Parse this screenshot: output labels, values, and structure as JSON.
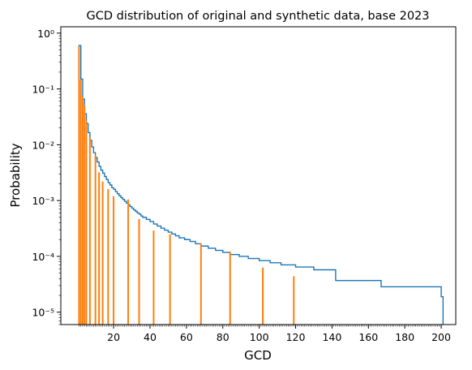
{
  "chart_data": {
    "type": "histogram",
    "title": "GCD distribution of original and synthetic data, base 2023",
    "xlabel": "GCD",
    "ylabel": "Probability",
    "x_ticks": [
      20,
      40,
      60,
      80,
      100,
      120,
      140,
      160,
      180,
      200
    ],
    "y_ticks": [
      {
        "value": 1,
        "label": "10⁰"
      },
      {
        "value": 0.1,
        "label": "10⁻¹"
      },
      {
        "value": 0.01,
        "label": "10⁻²"
      },
      {
        "value": 0.001,
        "label": "10⁻³"
      },
      {
        "value": 0.0001,
        "label": "10⁻⁴"
      },
      {
        "value": 1e-05,
        "label": "10⁻⁵"
      }
    ],
    "xlim": [
      -9,
      208
    ],
    "ylim": [
      6e-06,
      1.3
    ],
    "y_scale": "log",
    "grid": false,
    "legend": "none",
    "minor_x_ticks": "every integer 1–200",
    "series": [
      {
        "kind": "step",
        "color": "#1f77b4",
        "x": [
          1,
          2,
          3,
          4,
          5,
          6,
          7,
          8,
          9,
          10,
          11,
          12,
          13,
          14,
          15,
          16,
          17,
          18,
          19,
          20,
          21,
          22,
          23,
          24,
          25,
          26,
          27,
          28,
          29,
          30,
          31,
          32,
          33,
          34,
          35,
          36,
          38,
          40,
          42,
          44,
          46,
          48,
          50,
          52,
          54,
          56,
          59,
          62,
          65,
          68,
          72,
          76,
          80,
          84,
          89,
          94,
          100,
          106,
          112,
          120,
          130,
          142,
          167,
          200
        ],
        "values": [
          0.6,
          0.15,
          0.066,
          0.036,
          0.024,
          0.0165,
          0.012,
          0.0091,
          0.0072,
          0.0059,
          0.0049,
          0.0041,
          0.0035,
          0.0031,
          0.0027,
          0.0024,
          0.0021,
          0.0019,
          0.0017,
          0.0016,
          0.00145,
          0.00133,
          0.00122,
          0.00113,
          0.00105,
          0.00097,
          0.0009,
          0.00084,
          0.00078,
          0.00073,
          0.00068,
          0.00064,
          0.0006,
          0.00057,
          0.00053,
          0.0005,
          0.00046,
          0.00042,
          0.00038,
          0.00035,
          0.00032,
          0.000295,
          0.000272,
          0.000252,
          0.000234,
          0.000215,
          0.0002,
          0.000185,
          0.000168,
          0.000153,
          0.00014,
          0.000128,
          0.000118,
          0.000108,
          0.0001,
          9.15e-05,
          8.4e-05,
          7.68e-05,
          7.05e-05,
          6.45e-05,
          5.75e-05,
          3.7e-05,
          2.85e-05,
          1.89e-05
        ],
        "end": {
          "x": 201,
          "value": 1.1e-05
        }
      },
      {
        "kind": "spikes",
        "color": "#ff7f0e",
        "x": [
          1,
          2,
          3,
          4,
          5,
          7,
          10,
          12,
          14,
          17,
          20,
          28,
          34,
          42,
          51,
          68,
          84,
          102,
          119
        ],
        "values": [
          0.58,
          0.145,
          0.073,
          0.051,
          0.027,
          0.0137,
          0.0066,
          0.0032,
          0.0022,
          0.0016,
          0.0012,
          0.00105,
          0.00047,
          0.00029,
          0.00025,
          0.000172,
          0.000122,
          6.3e-05,
          4.4e-05
        ]
      }
    ]
  }
}
